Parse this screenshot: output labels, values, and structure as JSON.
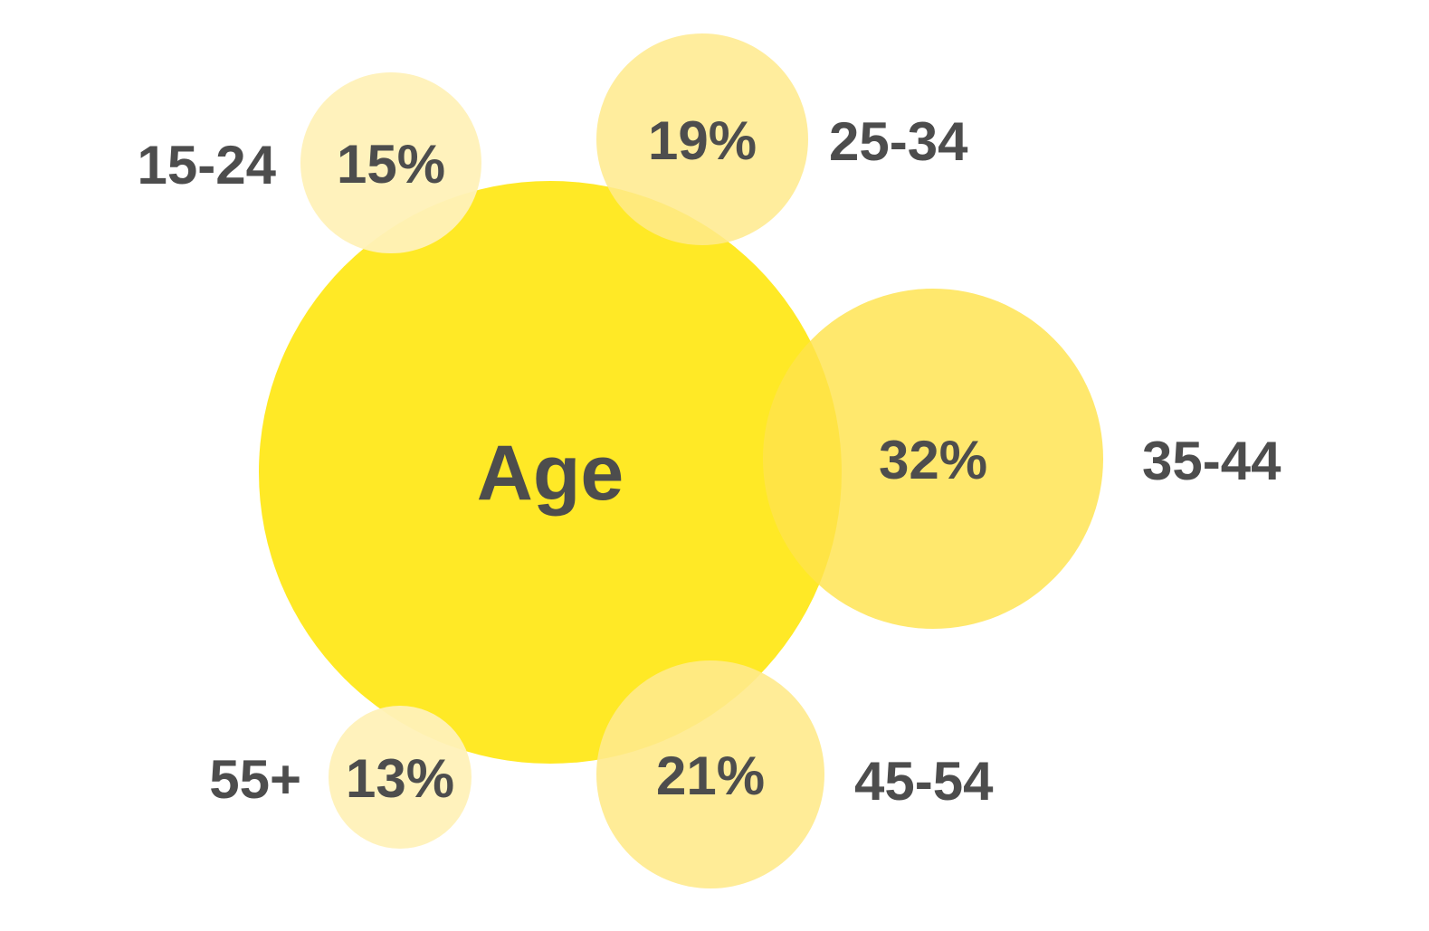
{
  "chart_data": {
    "type": "bubble",
    "center_label": "Age",
    "categories": [
      "15-24",
      "25-34",
      "35-44",
      "45-54",
      "55+"
    ],
    "values": [
      15,
      19,
      32,
      21,
      13
    ],
    "value_labels": [
      "15%",
      "19%",
      "32%",
      "21%",
      "13%"
    ],
    "unit": "%",
    "colors": {
      "center": "#FFE500",
      "bubble_light": "#FFF1B8",
      "bubble_mid": "#FFEA8C",
      "bubble_strong": "#FFE34D",
      "text": "#4D4D4D"
    }
  }
}
